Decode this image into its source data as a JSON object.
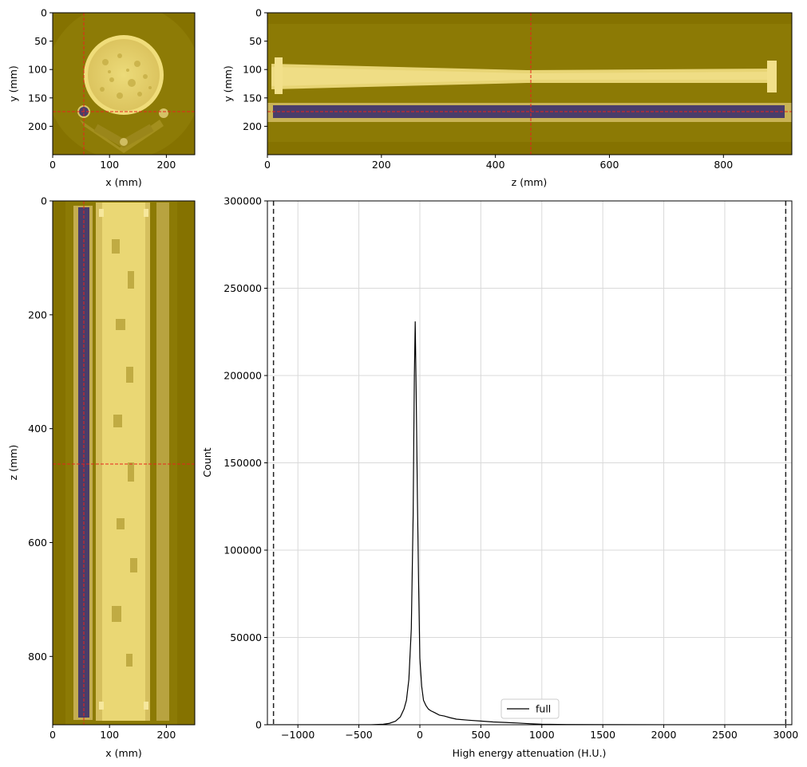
{
  "chart_data": [
    {
      "type": "image",
      "xlabel": "x (mm)",
      "ylabel": "y (mm)",
      "xticks": [
        0,
        100,
        200
      ],
      "yticks": [
        0,
        50,
        100,
        150,
        200
      ],
      "xlim": [
        0,
        250
      ],
      "ylim": [
        250,
        0
      ],
      "crosshair": {
        "x": 55,
        "y": 175
      },
      "colors": {
        "background": "#857200",
        "material": "#e9d66e",
        "marker": "#4a3d6a",
        "crosshair": "#e8241b"
      }
    },
    {
      "type": "image",
      "xlabel": "z (mm)",
      "ylabel": "y (mm)",
      "xticks": [
        0,
        200,
        400,
        600,
        800
      ],
      "yticks": [
        0,
        50,
        100,
        150,
        200
      ],
      "xlim": [
        0,
        920
      ],
      "ylim": [
        250,
        0
      ],
      "crosshair": {
        "x": 462,
        "y": 175
      }
    },
    {
      "type": "image",
      "xlabel": "x (mm)",
      "ylabel": "z (mm)",
      "xticks": [
        0,
        100,
        200
      ],
      "yticks": [
        0,
        200,
        400,
        600,
        800
      ],
      "xlim": [
        0,
        250
      ],
      "ylim": [
        920,
        0
      ],
      "crosshair": {
        "x": 55,
        "y": 462
      }
    },
    {
      "type": "line",
      "xlabel": "High energy attenuation (H.U.)",
      "ylabel": "Count",
      "xlim": [
        -1250,
        3050
      ],
      "ylim": [
        0,
        300000
      ],
      "xticks": [
        -1000,
        -500,
        0,
        500,
        1000,
        1500,
        2000,
        2500,
        3000
      ],
      "xtick_labels": [
        "−1000",
        "−500",
        "0",
        "500",
        "1000",
        "1500",
        "2000",
        "2500",
        "3000"
      ],
      "yticks": [
        0,
        50000,
        100000,
        150000,
        200000,
        250000,
        300000
      ],
      "grid": true,
      "legend_position": "bottom-center",
      "vlines": [
        -1200,
        3000
      ],
      "series": [
        {
          "name": "full",
          "color": "#000000",
          "x": [
            -1250,
            -400,
            -300,
            -250,
            -200,
            -160,
            -130,
            -110,
            -90,
            -70,
            -55,
            -45,
            -38,
            -30,
            -20,
            -10,
            0,
            15,
            30,
            50,
            70,
            90,
            120,
            160,
            200,
            250,
            300,
            400,
            500,
            600,
            700,
            800,
            900,
            1000,
            1200,
            1500,
            2000,
            3050
          ],
          "y": [
            0,
            0,
            300,
            800,
            2000,
            4500,
            9000,
            14000,
            26000,
            55000,
            120000,
            200000,
            231000,
            190000,
            130000,
            80000,
            38000,
            22000,
            14000,
            11000,
            9000,
            8000,
            7000,
            5500,
            5000,
            4000,
            3200,
            2600,
            2100,
            1600,
            1300,
            1000,
            600,
            300,
            150,
            80,
            30,
            0
          ]
        }
      ]
    }
  ]
}
